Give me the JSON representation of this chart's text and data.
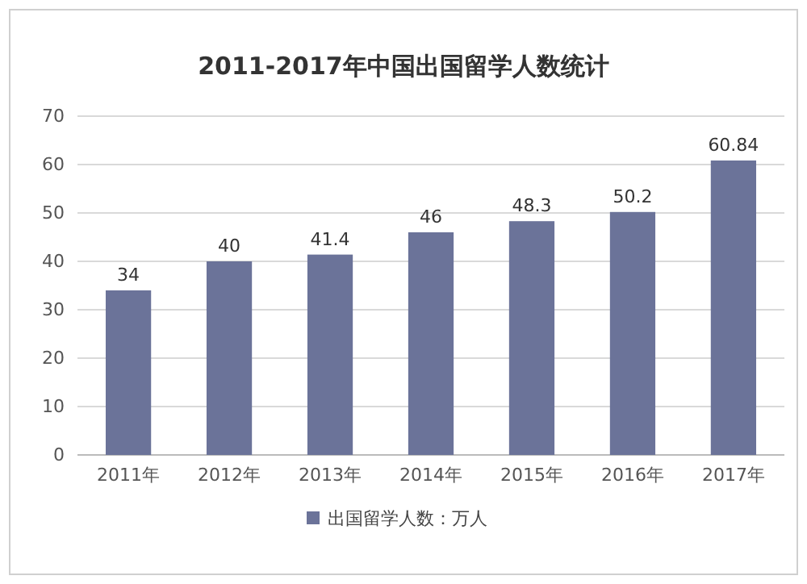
{
  "chart_data": {
    "type": "bar",
    "title": "2011-2017年中国出国留学人数统计",
    "categories": [
      "2011年",
      "2012年",
      "2013年",
      "2014年",
      "2015年",
      "2016年",
      "2017年"
    ],
    "series": [
      {
        "name": "出国留学人数：万人",
        "color": "#6b7399",
        "values": [
          34,
          40,
          41.4,
          46,
          48.3,
          50.2,
          60.84
        ]
      }
    ],
    "ylim": [
      0,
      70
    ],
    "yticks": [
      0,
      10,
      20,
      30,
      40,
      50,
      60,
      70
    ],
    "grid": "y",
    "legend": "bottom",
    "data_labels": true
  }
}
